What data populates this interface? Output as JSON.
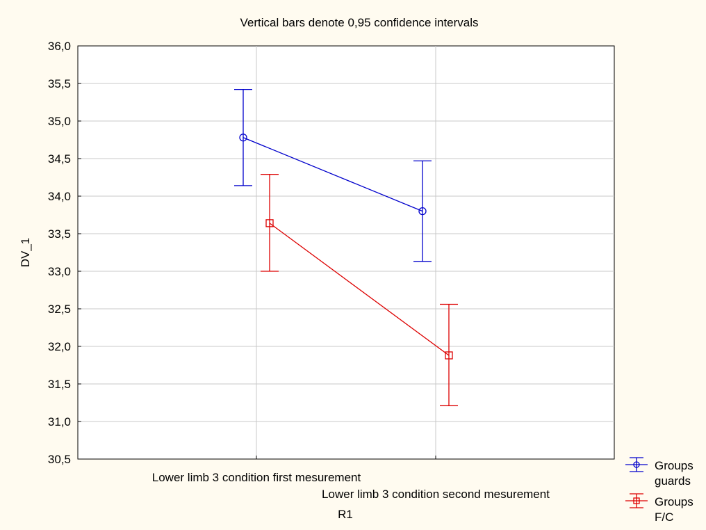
{
  "chart_data": {
    "type": "line",
    "title": "Vertical bars denote 0,95 confidence intervals",
    "xlabel": "R1",
    "ylabel": "DV_1",
    "categories": [
      "Lower limb 3 condition  first mesurement",
      "Lower limb 3 condition second  mesurement"
    ],
    "ylim": [
      30.5,
      36.0
    ],
    "yticks": [
      "30,5",
      "31,0",
      "31,5",
      "32,0",
      "32,5",
      "33,0",
      "33,5",
      "34,0",
      "34,5",
      "35,0",
      "35,5",
      "36,0"
    ],
    "grid": true,
    "legend_position": "bottom-right",
    "series": [
      {
        "name_lines": [
          "Groups",
          "guards"
        ],
        "color": "#0000cc",
        "marker": "circle",
        "values": [
          34.78,
          33.8
        ],
        "ci_low": [
          34.14,
          33.13
        ],
        "ci_high": [
          35.42,
          34.47
        ]
      },
      {
        "name_lines": [
          "Groups",
          "F/C"
        ],
        "color": "#dd0000",
        "marker": "square",
        "values": [
          33.64,
          31.88
        ],
        "ci_low": [
          33.0,
          31.21
        ],
        "ci_high": [
          34.29,
          32.56
        ]
      }
    ]
  }
}
